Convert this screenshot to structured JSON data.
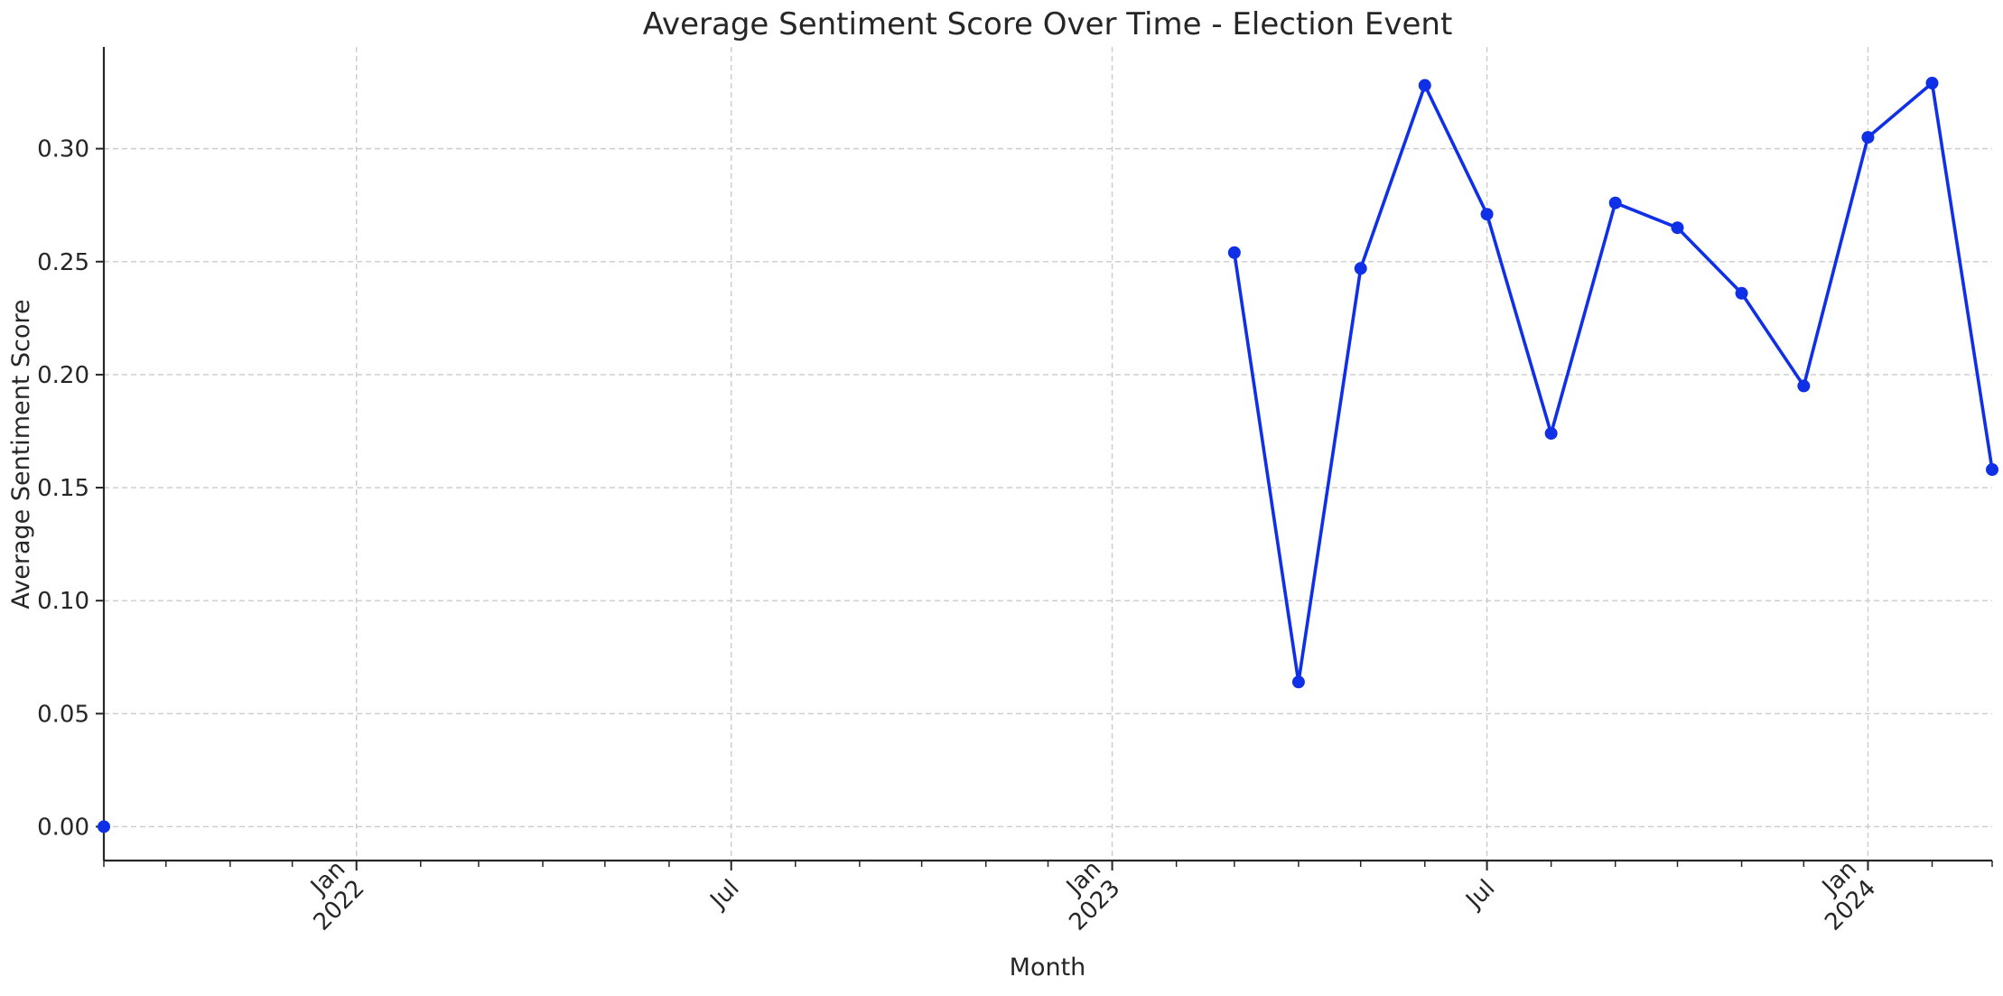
{
  "chart_data": {
    "type": "line",
    "title": "Average Sentiment Score Over Time - Election Event",
    "xlabel": "Month",
    "ylabel": "Average Sentiment Score",
    "x_axis_type": "date",
    "xlim": [
      "2021-09-01",
      "2024-03-01"
    ],
    "ylim": [
      -0.015,
      0.345
    ],
    "grid": true,
    "legend": "none",
    "colors": {
      "series": "#1030e8",
      "grid": "#cccccc",
      "axis": "#262626",
      "text": "#262626"
    },
    "x_ticks": [
      {
        "date": "2022-01-01",
        "label": [
          "Jan",
          "2022"
        ]
      },
      {
        "date": "2022-07-01",
        "label": [
          "Jul"
        ]
      },
      {
        "date": "2023-01-01",
        "label": [
          "Jan",
          "2023"
        ]
      },
      {
        "date": "2023-07-01",
        "label": [
          "Jul"
        ]
      },
      {
        "date": "2024-01-01",
        "label": [
          "Jan",
          "2024"
        ]
      }
    ],
    "y_ticks": [
      {
        "value": 0.0,
        "label": "0.00"
      },
      {
        "value": 0.05,
        "label": "0.05"
      },
      {
        "value": 0.1,
        "label": "0.10"
      },
      {
        "value": 0.15,
        "label": "0.15"
      },
      {
        "value": 0.2,
        "label": "0.20"
      },
      {
        "value": 0.25,
        "label": "0.25"
      },
      {
        "value": 0.3,
        "label": "0.30"
      }
    ],
    "series": [
      {
        "points": [
          {
            "x": "2021-09-01",
            "y": 0.0,
            "connected": false
          },
          {
            "x": "2023-03-01",
            "y": 0.254,
            "connected": true
          },
          {
            "x": "2023-04-01",
            "y": 0.064,
            "connected": true
          },
          {
            "x": "2023-05-01",
            "y": 0.247,
            "connected": true
          },
          {
            "x": "2023-06-01",
            "y": 0.328,
            "connected": true
          },
          {
            "x": "2023-07-01",
            "y": 0.271,
            "connected": true
          },
          {
            "x": "2023-08-01",
            "y": 0.174,
            "connected": true
          },
          {
            "x": "2023-09-01",
            "y": 0.276,
            "connected": true
          },
          {
            "x": "2023-10-01",
            "y": 0.265,
            "connected": true
          },
          {
            "x": "2023-11-01",
            "y": 0.236,
            "connected": true
          },
          {
            "x": "2023-12-01",
            "y": 0.195,
            "connected": true
          },
          {
            "x": "2024-01-01",
            "y": 0.305,
            "connected": true
          },
          {
            "x": "2024-02-01",
            "y": 0.329,
            "connected": true
          },
          {
            "x": "2024-03-01",
            "y": 0.158,
            "connected": true
          }
        ]
      }
    ]
  }
}
